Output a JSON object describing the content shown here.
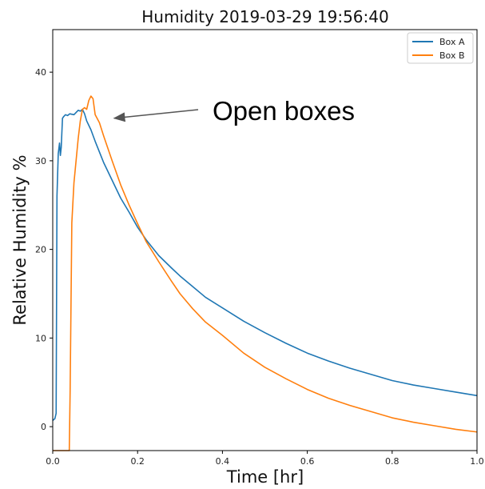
{
  "chart_data": {
    "type": "line",
    "title": "Humidity 2019-03-29 19:56:40",
    "xlabel": "Time [hr]",
    "ylabel": "Relative Humidity %",
    "xlim": [
      0.0,
      1.0
    ],
    "ylim": [
      -2.7,
      44.8
    ],
    "xticks": [
      0.0,
      0.2,
      0.4,
      0.6,
      0.8,
      1.0
    ],
    "xtick_labels": [
      "0.0",
      "0.2",
      "0.4",
      "0.6",
      "0.8",
      "1.0"
    ],
    "yticks": [
      0,
      10,
      20,
      30,
      40
    ],
    "ytick_labels": [
      "0",
      "10",
      "20",
      "30",
      "40"
    ],
    "grid": false,
    "legend_position": "top-right",
    "series": [
      {
        "name": "Box A",
        "color": "#1f77b4",
        "x": [
          0.0,
          0.005,
          0.008,
          0.01,
          0.013,
          0.016,
          0.018,
          0.02,
          0.023,
          0.026,
          0.03,
          0.035,
          0.04,
          0.05,
          0.06,
          0.065,
          0.07,
          0.075,
          0.08,
          0.09,
          0.1,
          0.12,
          0.14,
          0.16,
          0.18,
          0.2,
          0.22,
          0.25,
          0.28,
          0.3,
          0.33,
          0.36,
          0.4,
          0.45,
          0.5,
          0.55,
          0.6,
          0.65,
          0.7,
          0.75,
          0.8,
          0.85,
          0.9,
          0.95,
          1.0
        ],
        "y": [
          0.7,
          0.9,
          1.5,
          26.0,
          30.8,
          32.0,
          30.6,
          31.5,
          34.8,
          35.0,
          35.2,
          35.1,
          35.3,
          35.2,
          35.7,
          35.6,
          35.8,
          35.3,
          34.5,
          33.5,
          32.2,
          29.8,
          27.8,
          25.8,
          24.2,
          22.5,
          21.1,
          19.3,
          17.9,
          17.0,
          15.8,
          14.6,
          13.4,
          11.9,
          10.6,
          9.4,
          8.3,
          7.4,
          6.6,
          5.9,
          5.2,
          4.7,
          4.3,
          3.9,
          3.5
        ]
      },
      {
        "name": "Box B",
        "color": "#ff7f0e",
        "x": [
          0.0,
          0.01,
          0.02,
          0.03,
          0.039,
          0.041,
          0.045,
          0.05,
          0.055,
          0.06,
          0.065,
          0.07,
          0.075,
          0.08,
          0.085,
          0.09,
          0.095,
          0.1,
          0.11,
          0.12,
          0.14,
          0.16,
          0.18,
          0.2,
          0.22,
          0.25,
          0.28,
          0.3,
          0.33,
          0.36,
          0.4,
          0.45,
          0.5,
          0.55,
          0.6,
          0.65,
          0.7,
          0.75,
          0.8,
          0.85,
          0.9,
          0.95,
          1.0
        ],
        "y": [
          -2.7,
          -2.7,
          -2.7,
          -2.7,
          -2.7,
          4.0,
          23.0,
          27.5,
          30.0,
          32.5,
          34.5,
          35.8,
          36.0,
          35.8,
          36.8,
          37.3,
          37.0,
          35.2,
          34.3,
          32.8,
          30.0,
          27.3,
          25.0,
          22.9,
          20.9,
          18.6,
          16.4,
          15.0,
          13.3,
          11.8,
          10.3,
          8.3,
          6.7,
          5.4,
          4.2,
          3.2,
          2.4,
          1.7,
          1.0,
          0.5,
          0.1,
          -0.3,
          -0.6
        ]
      }
    ],
    "annotations": [
      {
        "text": "Open boxes",
        "arrow_to_x": 0.145,
        "arrow_to_y": 34.8
      }
    ]
  }
}
